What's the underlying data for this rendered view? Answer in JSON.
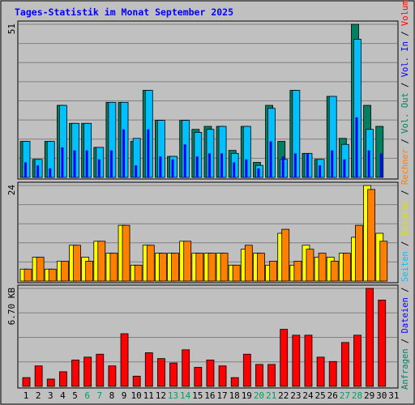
{
  "chart_data": {
    "type": "bar",
    "title": "Tages-Statistik im Monat September 2025",
    "categories": [
      "1",
      "2",
      "3",
      "4",
      "5",
      "6",
      "7",
      "8",
      "9",
      "10",
      "11",
      "12",
      "13",
      "14",
      "15",
      "16",
      "17",
      "18",
      "19",
      "20",
      "21",
      "22",
      "23",
      "24",
      "25",
      "26",
      "27",
      "28",
      "29",
      "30",
      "31"
    ],
    "weekend_days": [
      "6",
      "7",
      "13",
      "14",
      "20",
      "21",
      "27",
      "28"
    ],
    "panels": [
      {
        "name": "requests-files-pages",
        "ymax_label": "51",
        "ylim": [
          0,
          51
        ],
        "gridlines": 8,
        "series": [
          {
            "name": "Anfragen",
            "color": "#008060",
            "values": [
              12,
              6,
              12,
              24,
              18,
              18,
              10,
              25,
              25,
              12,
              29,
              19,
              7,
              19,
              16,
              17,
              17,
              9,
              17,
              5,
              24,
              12,
              29,
              8,
              6,
              27,
              13,
              51,
              24,
              17,
              0
            ]
          },
          {
            "name": "Dateien",
            "color": "#00c0ff",
            "values": [
              12,
              6,
              12,
              24,
              18,
              18,
              10,
              25,
              25,
              13,
              29,
              19,
              7,
              19,
              15,
              16,
              17,
              8,
              17,
              4,
              23,
              6,
              29,
              8,
              6,
              27,
              11,
              46,
              16,
              0,
              0
            ]
          },
          {
            "name": "Seiten",
            "color": "#0000ff",
            "values": [
              5,
              4,
              3,
              10,
              9,
              9,
              6,
              9,
              16,
              4,
              16,
              7,
              6,
              11,
              7,
              8,
              8,
              5,
              6,
              3,
              12,
              7,
              8,
              8,
              4,
              9,
              6,
              20,
              9,
              8,
              0
            ]
          }
        ]
      },
      {
        "name": "visits-sites",
        "ymax_label": "24",
        "ylim": [
          0,
          24
        ],
        "gridlines": 5,
        "series": [
          {
            "name": "Besuche",
            "color": "#ffff00",
            "values": [
              3,
              6,
              3,
              5,
              9,
              6,
              10,
              7,
              14,
              4,
              9,
              7,
              7,
              10,
              7,
              7,
              7,
              4,
              8,
              7,
              4,
              12,
              4,
              9,
              6,
              6,
              7,
              11,
              24,
              12,
              0
            ]
          },
          {
            "name": "Rechner",
            "color": "#ff8000",
            "values": [
              3,
              6,
              3,
              5,
              9,
              5,
              10,
              7,
              14,
              4,
              9,
              7,
              7,
              10,
              7,
              7,
              7,
              4,
              9,
              7,
              5,
              13,
              5,
              8,
              7,
              5,
              7,
              14,
              23,
              10,
              0
            ]
          }
        ]
      },
      {
        "name": "volume",
        "ymax_label": "6.70 KB",
        "ylim": [
          0,
          6.7
        ],
        "gridlines": 4,
        "series": [
          {
            "name": "Volumen",
            "color": "#ff0000",
            "values": [
              0.6,
              1.4,
              0.5,
              1.0,
              1.8,
              2.0,
              2.2,
              1.4,
              3.6,
              0.7,
              2.3,
              1.9,
              1.6,
              2.5,
              1.3,
              1.8,
              1.4,
              0.6,
              2.2,
              1.5,
              1.5,
              3.9,
              3.5,
              3.5,
              2.0,
              1.7,
              3.0,
              3.5,
              6.7,
              5.9,
              0
            ]
          }
        ]
      }
    ],
    "legend_vertical": [
      {
        "text": "Anfragen",
        "color": "#008060"
      },
      {
        "text": " / ",
        "color": "#000000"
      },
      {
        "text": "Dateien",
        "color": "#0000ff"
      },
      {
        "text": " / ",
        "color": "#000000"
      },
      {
        "text": "Seiten",
        "color": "#00c0ff"
      },
      {
        "text": " / ",
        "color": "#000000"
      },
      {
        "text": "Besuche",
        "color": "#e0e000"
      },
      {
        "text": " / ",
        "color": "#000000"
      },
      {
        "text": "Rechner",
        "color": "#ff8000"
      },
      {
        "text": " / ",
        "color": "#000000"
      },
      {
        "text": "Vol. Out",
        "color": "#008060"
      },
      {
        "text": " / ",
        "color": "#000000"
      },
      {
        "text": "Vol. In",
        "color": "#0000ff"
      },
      {
        "text": " / ",
        "color": "#000000"
      },
      {
        "text": "Volumen",
        "color": "#ff0000"
      }
    ]
  }
}
